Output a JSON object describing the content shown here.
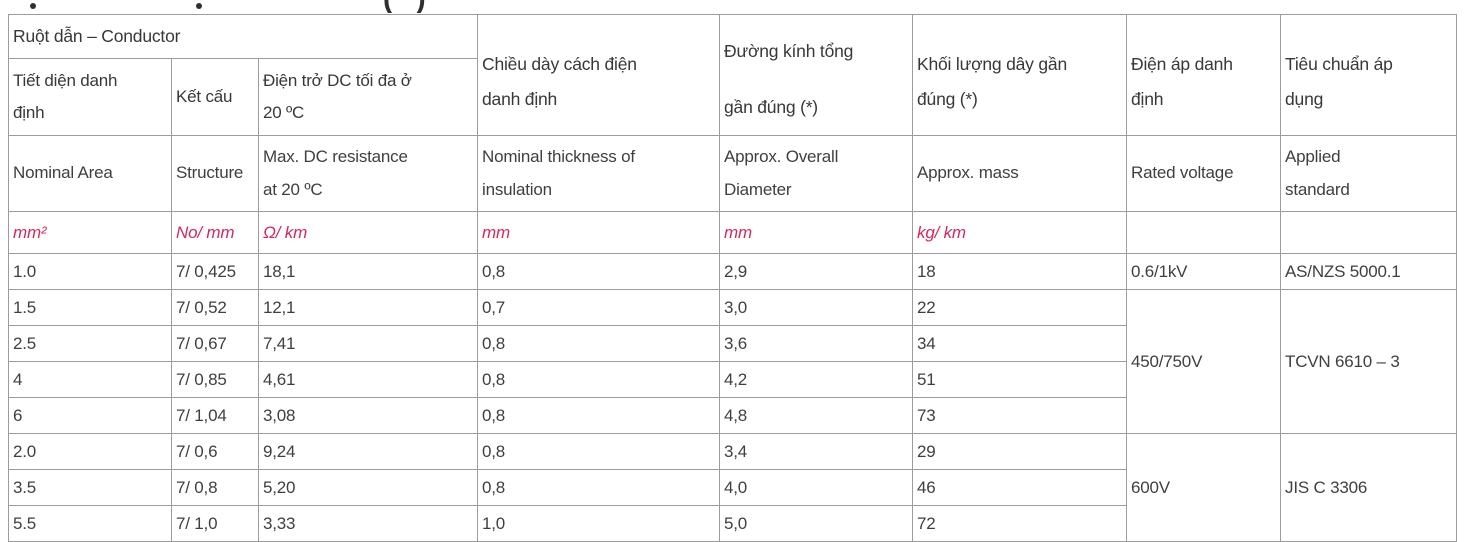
{
  "clipped_heading": {
    "note": "heading cropped by top edge of viewport",
    "paren_open": "(",
    "paren_close": ")"
  },
  "table": {
    "conductor_group_label": "Ruột dẫn – Conductor",
    "headers_vi": [
      "Tiết diện danh\nđịnh",
      "Kết cấu",
      "Điện trở DC tối đa ở\n20 ºC",
      "Chiều dày cách điện\ndanh định",
      "Đường kính tổng\ngần đúng (*)",
      "Khối lượng dây gần\nđúng (*)",
      "Điện áp danh\nđịnh",
      "Tiêu chuẩn áp\ndụng"
    ],
    "headers_en": [
      "Nominal Area",
      "Structure",
      "Max. DC resistance\nat 20 ºC",
      "Nominal thickness of\ninsulation",
      "Approx. Overall\nDiameter",
      "Approx. mass",
      "Rated voltage",
      "Applied\nstandard"
    ],
    "units": [
      "mm²",
      "No/ mm",
      "Ω/ km",
      "mm",
      "mm",
      "kg/ km",
      "",
      ""
    ],
    "rows": [
      {
        "cells": [
          "1.0",
          "7/ 0,425",
          "18,1",
          "0,8",
          "2,9",
          "18"
        ],
        "voltage": {
          "text": "0.6/1kV",
          "rowspan": 1
        },
        "standard": {
          "text": "AS/NZS 5000.1",
          "rowspan": 1
        }
      },
      {
        "cells": [
          "1.5",
          "7/ 0,52",
          "12,1",
          "0,7",
          "3,0",
          "22"
        ],
        "voltage": {
          "text": "450/750V",
          "rowspan": 4
        },
        "standard": {
          "text": "TCVN 6610 – 3",
          "rowspan": 4
        }
      },
      {
        "cells": [
          "2.5",
          "7/ 0,67",
          "7,41",
          "0,8",
          "3,6",
          "34"
        ]
      },
      {
        "cells": [
          "4",
          "7/ 0,85",
          "4,61",
          "0,8",
          "4,2",
          "51"
        ]
      },
      {
        "cells": [
          "6",
          "7/ 1,04",
          "3,08",
          "0,8",
          "4,8",
          "73"
        ]
      },
      {
        "cells": [
          "2.0",
          "7/ 0,6",
          "9,24",
          "0,8",
          "3,4",
          "29"
        ],
        "voltage": {
          "text": "600V",
          "rowspan": 3
        },
        "standard": {
          "text": "JIS C 3306",
          "rowspan": 3
        }
      },
      {
        "cells": [
          "3.5",
          "7/ 0,8",
          "5,20",
          "0,8",
          "4,0",
          "46"
        ]
      },
      {
        "cells": [
          "5.5",
          "7/ 1,0",
          "3,33",
          "1,0",
          "5,0",
          "72"
        ]
      }
    ],
    "colors": {
      "unit_text": "#d22a5c",
      "border": "#9c9c9c",
      "header_text": "#383838",
      "body_text": "#3f3f3f"
    }
  }
}
